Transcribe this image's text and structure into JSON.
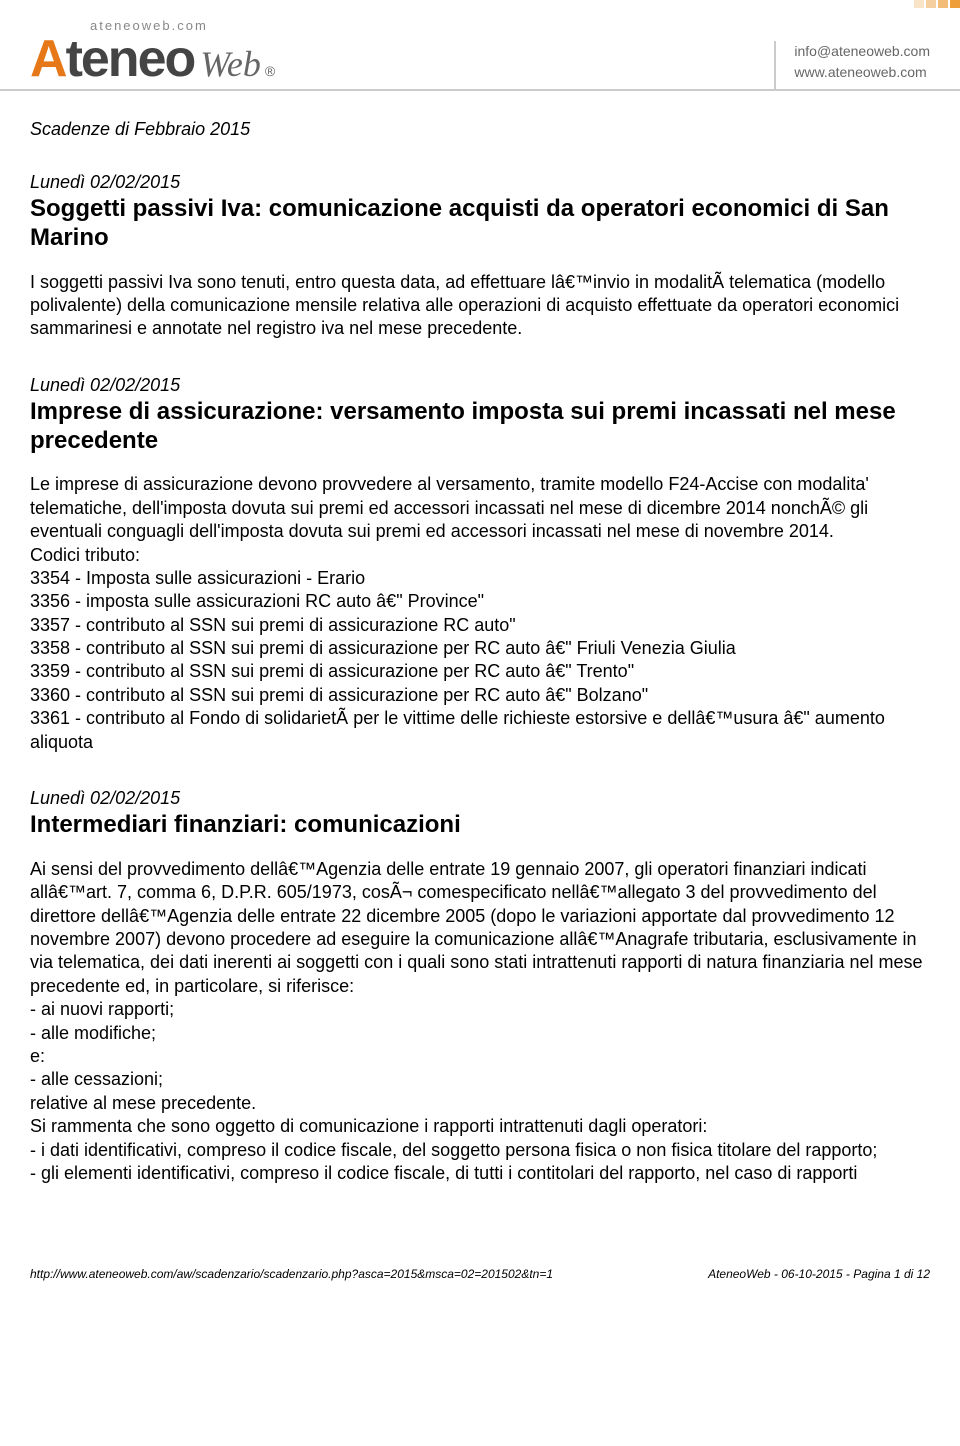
{
  "header": {
    "logo_top": "ateneoweb.com",
    "logo_part1": "A",
    "logo_part2": "teneo",
    "logo_web": "Web",
    "logo_reg": "®",
    "contact_email": "info@ateneoweb.com",
    "contact_site": "www.ateneoweb.com",
    "bar_colors": [
      "#f9e4c8",
      "#f5cfa0",
      "#f3bd79",
      "#ee9e3a"
    ]
  },
  "page_subtitle": "Scadenze di Febbraio 2015",
  "entries": [
    {
      "date": "Lunedì 02/02/2015",
      "title": "Soggetti passivi Iva: comunicazione acquisti da operatori economici di San Marino",
      "body": "I soggetti passivi Iva sono tenuti, entro questa data, ad effettuare lâ€™invio in modalitÃ  telematica (modello polivalente) della comunicazione mensile relativa alle operazioni di acquisto effettuate da operatori economici sammarinesi e annotate nel registro iva nel mese precedente."
    },
    {
      "date": "Lunedì 02/02/2015",
      "title": "Imprese di assicurazione: versamento imposta sui premi incassati nel mese precedente",
      "body": "Le imprese di assicurazione devono provvedere al versamento, tramite modello F24-Accise con modalita' telematiche, dell'imposta dovuta sui premi ed accessori incassati nel mese di dicembre 2014 nonchÃ© gli eventuali conguagli dell'imposta dovuta sui premi ed accessori incassati nel mese di novembre 2014.\nCodici tributo:\n3354 - Imposta sulle assicurazioni - Erario\n3356 - imposta sulle assicurazioni RC auto â€\" Province\"\n3357 - contributo al SSN sui premi di assicurazione RC auto\"\n3358 - contributo al SSN sui premi di assicurazione per RC auto â€\" Friuli Venezia Giulia\n3359 - contributo al SSN sui premi di assicurazione per RC auto â€\" Trento\"\n3360 - contributo al SSN sui premi di assicurazione per RC auto â€\" Bolzano\"\n3361 - contributo al Fondo di solidarietÃ  per le vittime delle richieste estorsive e dellâ€™usura â€\" aumento aliquota"
    },
    {
      "date": "Lunedì 02/02/2015",
      "title": "Intermediari finanziari: comunicazioni",
      "body": "Ai sensi del provvedimento dellâ€™Agenzia delle entrate 19 gennaio 2007, gli operatori finanziari indicati allâ€™art. 7, comma 6, D.P.R. 605/1973, cosÃ¬ comespecificato nellâ€™allegato 3 del provvedimento del direttore dellâ€™Agenzia delle entrate 22 dicembre 2005 (dopo le variazioni apportate dal provvedimento 12 novembre 2007) devono procedere ad eseguire la comunicazione allâ€™Anagrafe tributaria, esclusivamente in via telematica, dei dati inerenti ai soggetti con i quali sono stati intrattenuti rapporti di natura finanziaria nel mese precedente ed, in particolare, si riferisce:\n- ai nuovi rapporti;\n- alle modifiche;\ne:\n- alle cessazioni;\nrelative al mese precedente.\nSi rammenta che sono oggetto di comunicazione i rapporti intrattenuti dagli operatori:\n- i dati identificativi, compreso il codice fiscale, del soggetto persona fisica o non fisica titolare del rapporto;\n- gli elementi identificativi, compreso il codice fiscale, di tutti i contitolari del rapporto, nel caso di rapporti"
    }
  ],
  "footer": {
    "url": "http://www.ateneoweb.com/aw/scadenzario/scadenzario.php?asca=2015&msca=02=201502&tn=1",
    "pageinfo": "AteneoWeb - 06-10-2015 - Pagina 1 di 12"
  }
}
